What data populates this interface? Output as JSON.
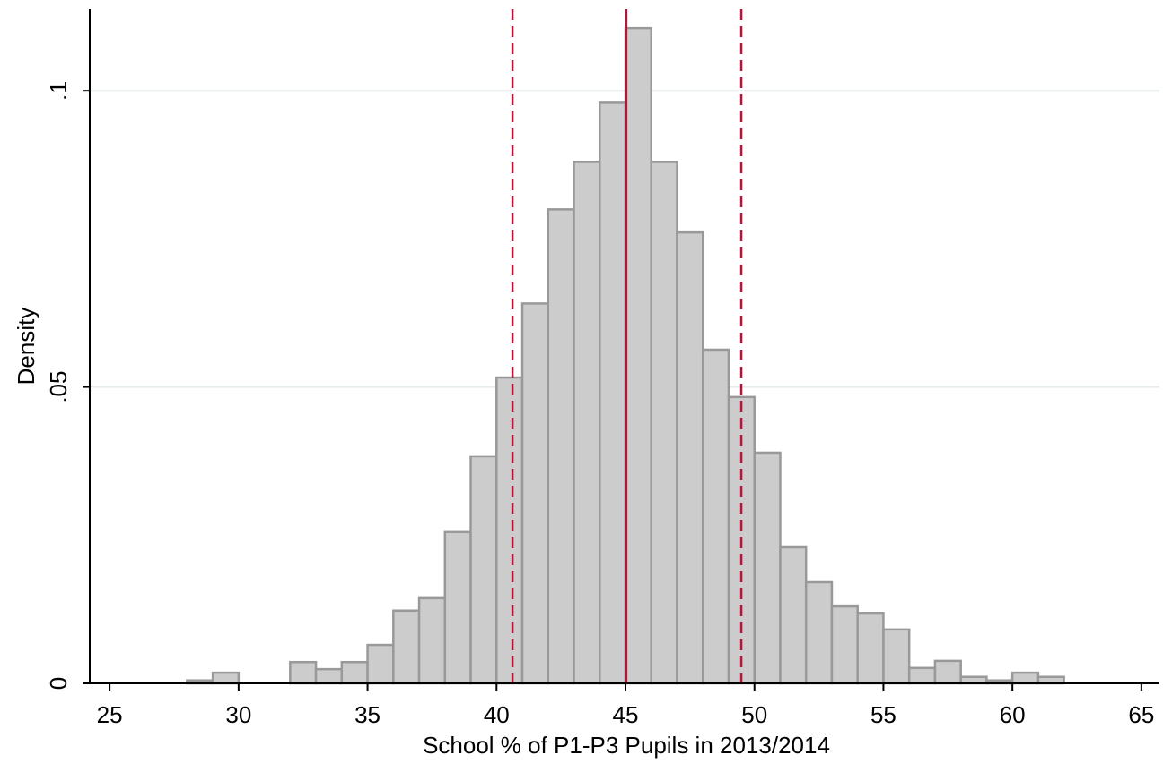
{
  "chart_data": {
    "type": "histogram",
    "x_label": "School % of P1-P3 Pupils in 2013/2014",
    "y_label": "Density",
    "bins": [
      28,
      29,
      30,
      31,
      32,
      33,
      34,
      35,
      36,
      37,
      38,
      39,
      40,
      41,
      42,
      43,
      44,
      45,
      46,
      47,
      48,
      49,
      50,
      51,
      52,
      53,
      54,
      55,
      56,
      57,
      58,
      59,
      60,
      61,
      62
    ],
    "values": [
      0.0005,
      0.0018,
      0,
      0,
      0.0036,
      0.0024,
      0.0036,
      0.0065,
      0.0123,
      0.0144,
      0.0256,
      0.0383,
      0.0516,
      0.0641,
      0.08,
      0.088,
      0.098,
      0.1106,
      0.088,
      0.0761,
      0.0563,
      0.0483,
      0.0389,
      0.023,
      0.0171,
      0.013,
      0.0118,
      0.0091,
      0.0026,
      0.0038,
      0.0011,
      0.0005,
      0.0018,
      0.0011
    ],
    "color": "#cccccc",
    "edge_color": "#999999",
    "xlim": [
      24.23,
      65.7
    ],
    "xticks": [
      25,
      30,
      35,
      40,
      45,
      50,
      55,
      60,
      65
    ],
    "ylim": [
      0,
      0.1138
    ],
    "yticks": [
      0,
      {
        "value": 0.05,
        "label": ".05"
      },
      {
        "value": 0.1,
        "label": ".1"
      }
    ],
    "grid": true,
    "reference_lines": [
      {
        "value": 40.62,
        "style": "dashed",
        "color": "#c0103a"
      },
      {
        "value": 45.03,
        "style": "solid",
        "color": "#c0103a"
      },
      {
        "value": 49.49,
        "style": "dashed",
        "color": "#c0103a"
      }
    ]
  }
}
